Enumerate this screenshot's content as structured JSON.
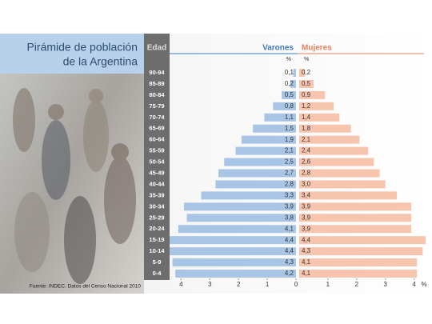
{
  "chart_data": {
    "type": "pyramid",
    "title": [
      "Pirámide de población",
      "de la Argentina"
    ],
    "y_label": "Edad",
    "categories": [
      "90-94",
      "85-89",
      "80-84",
      "75-79",
      "70-74",
      "65-69",
      "60-64",
      "55-59",
      "50-54",
      "45-49",
      "40-44",
      "35-39",
      "30-34",
      "25-29",
      "20-24",
      "15-19",
      "10-14",
      "5-9",
      "0-4"
    ],
    "series": [
      {
        "name": "Varones",
        "color": "#a9c5e6",
        "text_color": "#3b7cc0",
        "unit": "%",
        "values": [
          0.1,
          0.2,
          0.5,
          0.8,
          1.1,
          1.5,
          1.9,
          2.1,
          2.5,
          2.7,
          2.8,
          3.3,
          3.9,
          3.8,
          4.1,
          4.4,
          4.4,
          4.3,
          4.2
        ],
        "value_labels": [
          "0,1",
          "0,2",
          "0,5",
          "0,8",
          "1,1",
          "1,5",
          "1,9",
          "2,1",
          "2,5",
          "2,7",
          "2,8",
          "3,3",
          "3,9",
          "3,8",
          "4,1",
          "4,4",
          "4,4",
          "4,3",
          "4,2"
        ]
      },
      {
        "name": "Mujeres",
        "color": "#f7c4ae",
        "text_color": "#e7825c",
        "unit": "%",
        "values": [
          0.2,
          0.5,
          0.9,
          1.2,
          1.4,
          1.8,
          2.1,
          2.4,
          2.6,
          2.8,
          3.0,
          3.4,
          3.9,
          3.9,
          3.9,
          4.4,
          4.3,
          4.1,
          4.1
        ],
        "value_labels": [
          "0,2",
          "0,5",
          "0,9",
          "1,2",
          "1,4",
          "1,8",
          "2,1",
          "2,4",
          "2,6",
          "2,8",
          "3,0",
          "3,4",
          "3,9",
          "3,9",
          "3,9",
          "4,4",
          "4,3",
          "4,1",
          "4,1"
        ]
      }
    ],
    "xlim": [
      0,
      4.4
    ],
    "xticks_left": [
      4,
      3,
      2,
      1,
      0
    ],
    "xticks_right": [
      1,
      2,
      3,
      4
    ],
    "x_unit_label": "%",
    "source": "Fuente: INDEC. Datos del Censo Nacional 2010"
  }
}
